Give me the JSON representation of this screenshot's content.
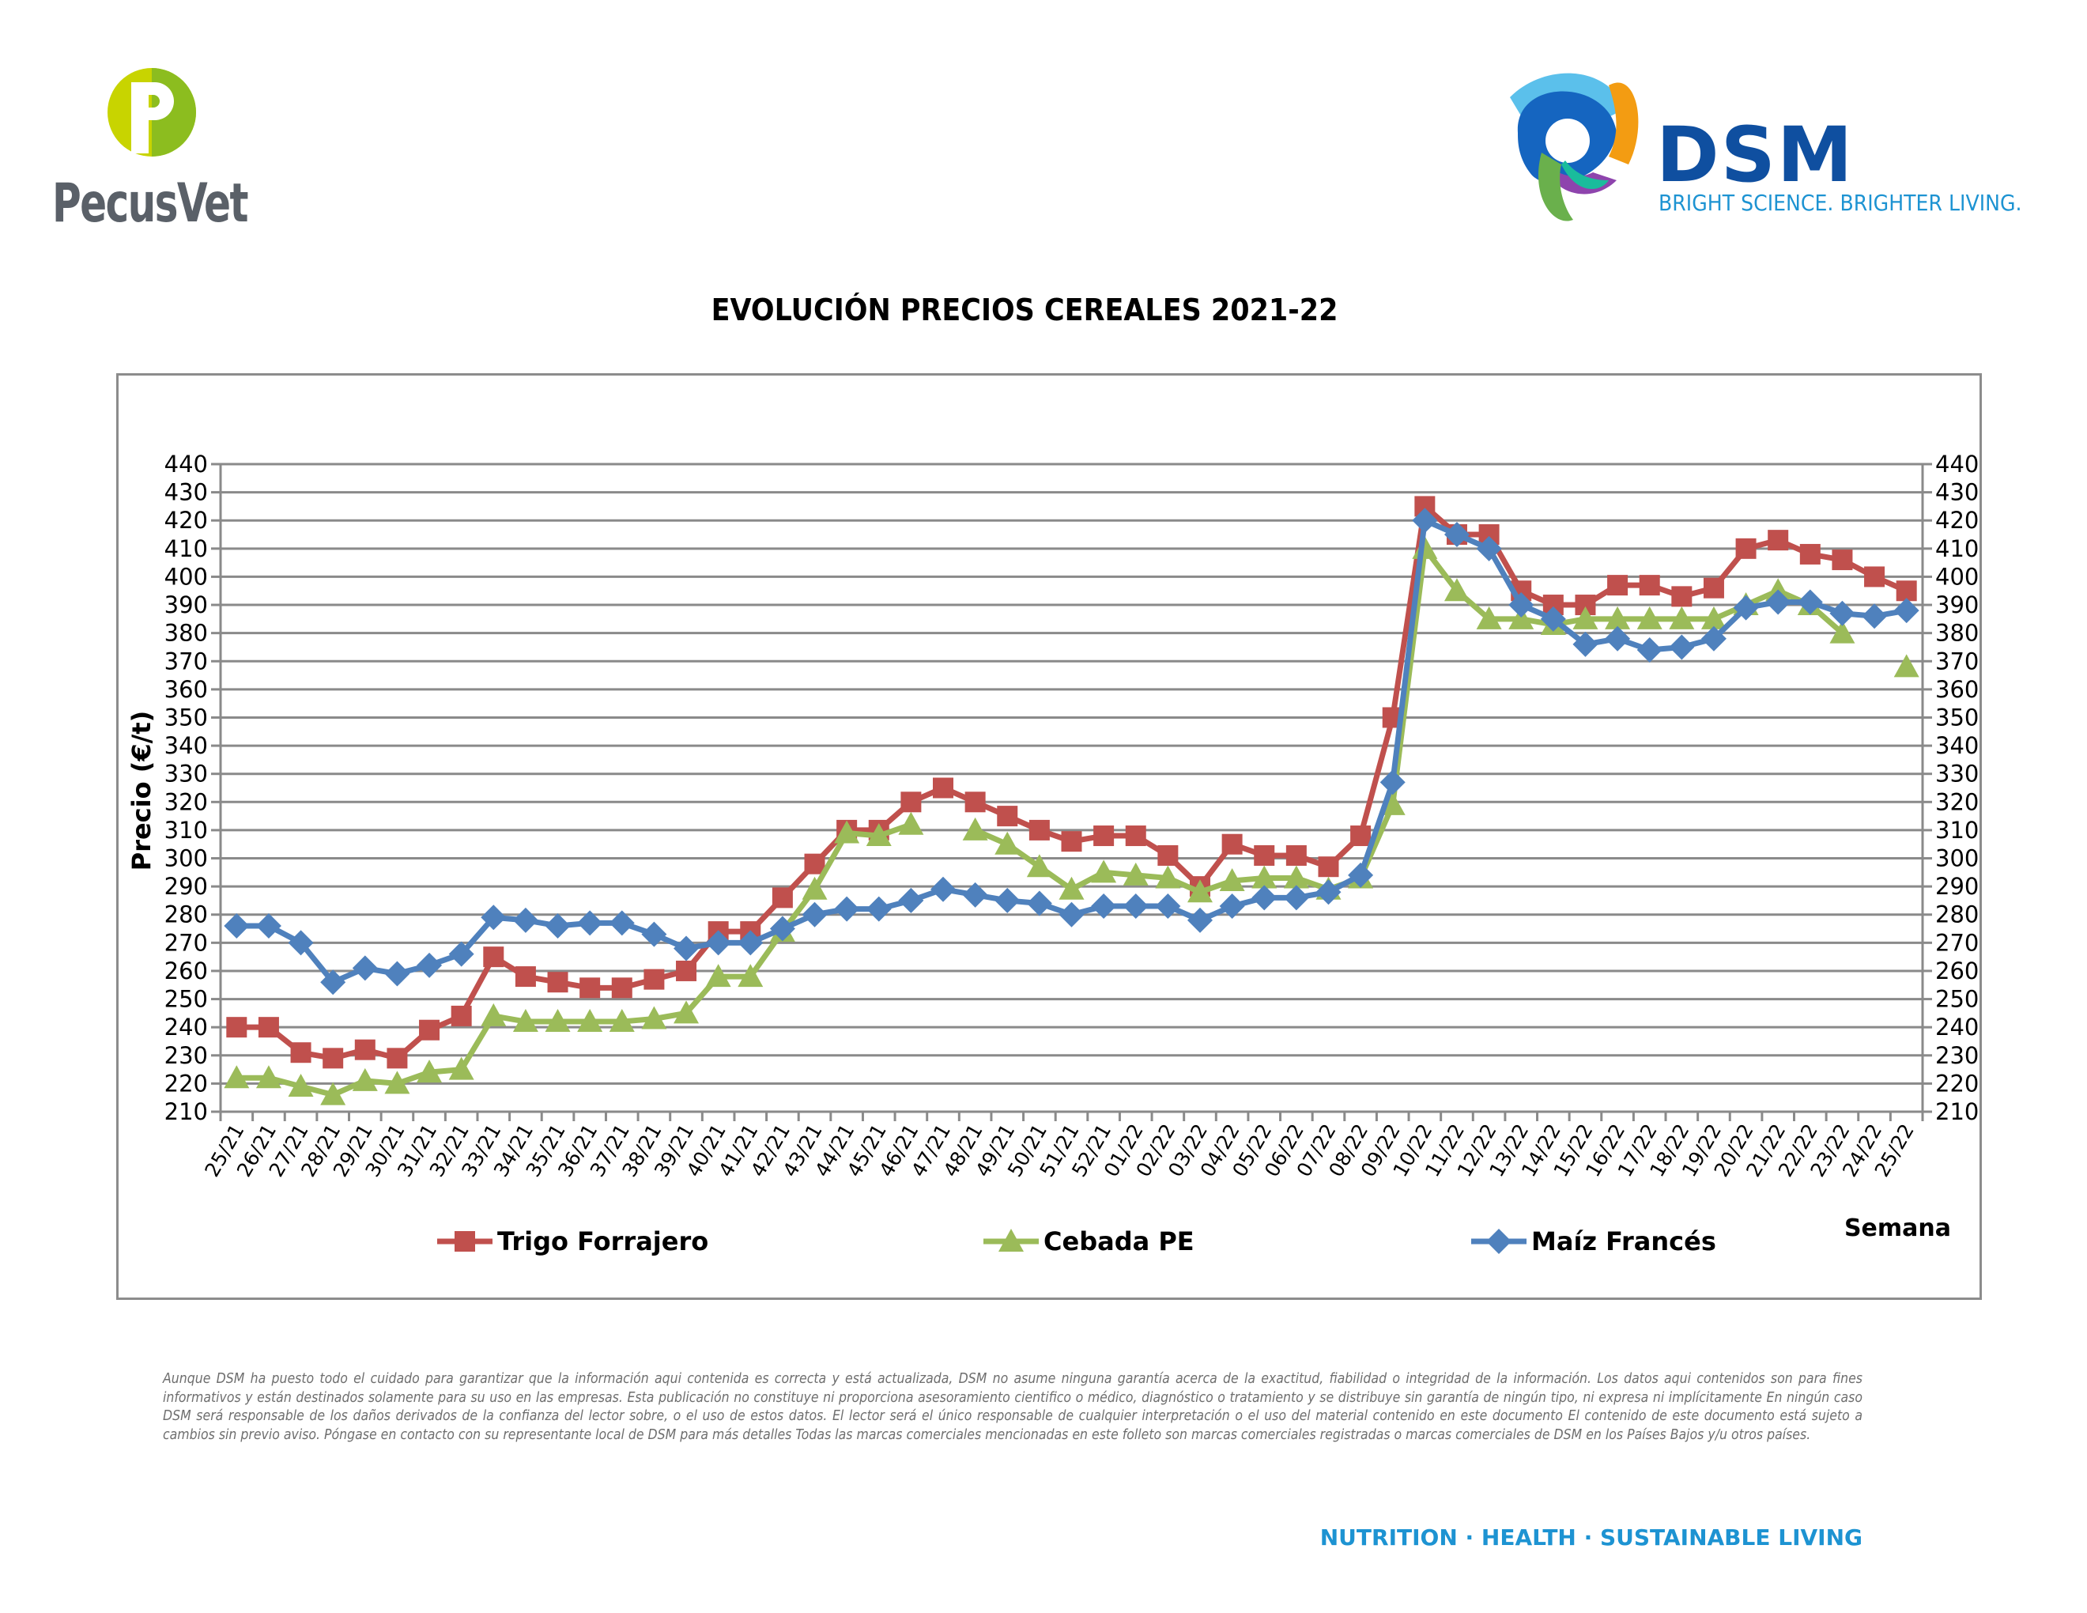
{
  "logos": {
    "left": {
      "text": "PecusVet",
      "colors": [
        "#c8d400",
        "#8cbd1f",
        "#5a6068"
      ]
    },
    "right": {
      "text": "DSM",
      "tagline": "BRIGHT SCIENCE. BRIGHTER LIVING.",
      "colors": [
        "#0f4fa0",
        "#1d93d2",
        "#f39c12",
        "#8e44ad",
        "#6ab04c"
      ]
    }
  },
  "chart_data": {
    "type": "line",
    "title": "EVOLUCIÓN PRECIOS CEREALES 2021-22",
    "xlabel": "Semana",
    "ylabel": "Precio (€/t)",
    "ylim": [
      210,
      440
    ],
    "yticks": [
      210,
      220,
      230,
      240,
      250,
      260,
      270,
      280,
      290,
      300,
      310,
      320,
      330,
      340,
      350,
      360,
      370,
      380,
      390,
      400,
      410,
      420,
      430,
      440
    ],
    "secondary_y_axis": true,
    "grid": true,
    "legend_position": "bottom",
    "categories": [
      "25/21",
      "26/21",
      "27/21",
      "28/21",
      "29/21",
      "30/21",
      "31/21",
      "32/21",
      "33/21",
      "34/21",
      "35/21",
      "36/21",
      "37/21",
      "38/21",
      "39/21",
      "40/21",
      "41/21",
      "42/21",
      "43/21",
      "44/21",
      "45/21",
      "46/21",
      "47/21",
      "48/21",
      "49/21",
      "50/21",
      "51/21",
      "52/21",
      "01/22",
      "02/22",
      "03/22",
      "04/22",
      "05/22",
      "06/22",
      "07/22",
      "08/22",
      "09/22",
      "10/22",
      "11/22",
      "12/22",
      "13/22",
      "14/22",
      "15/22",
      "16/22",
      "17/22",
      "18/22",
      "19/22",
      "20/22",
      "21/22",
      "22/22",
      "23/22",
      "24/22",
      "25/22"
    ],
    "series": [
      {
        "name": "Trigo Forrajero",
        "color": "#c0504d",
        "marker": "square",
        "values": [
          240,
          240,
          231,
          229,
          232,
          229,
          239,
          244,
          265,
          258,
          256,
          254,
          254,
          257,
          260,
          274,
          274,
          286,
          298,
          310,
          310,
          320,
          325,
          320,
          315,
          310,
          306,
          308,
          308,
          301,
          290,
          305,
          301,
          301,
          297,
          308,
          350,
          425,
          415,
          415,
          395,
          390,
          390,
          397,
          397,
          393,
          396,
          410,
          413,
          408,
          406,
          400,
          395
        ]
      },
      {
        "name": "Cebada PE",
        "color": "#9bbb59",
        "marker": "triangle",
        "values": [
          222,
          222,
          219,
          216,
          221,
          220,
          224,
          225,
          244,
          242,
          242,
          242,
          242,
          243,
          245,
          258,
          258,
          274,
          289,
          309,
          308,
          312,
          null,
          310,
          305,
          297,
          289,
          295,
          294,
          293,
          288,
          292,
          293,
          293,
          289,
          293,
          319,
          410,
          395,
          385,
          385,
          383,
          385,
          385,
          385,
          385,
          385,
          390,
          395,
          390,
          380,
          null,
          368
        ]
      },
      {
        "name": "Maíz Francés",
        "color": "#4f81bd",
        "marker": "diamond",
        "values": [
          276,
          276,
          270,
          256,
          261,
          259,
          262,
          266,
          279,
          278,
          276,
          277,
          277,
          273,
          268,
          270,
          270,
          275,
          280,
          282,
          282,
          285,
          289,
          287,
          285,
          284,
          280,
          283,
          283,
          283,
          278,
          283,
          286,
          286,
          288,
          294,
          327,
          420,
          415,
          410,
          390,
          385,
          376,
          378,
          374,
          375,
          378,
          389,
          391,
          391,
          387,
          386,
          388
        ]
      }
    ]
  },
  "disclaimer": "Aunque DSM ha puesto todo el cuidado para garantizar que la información aqui contenida es correcta y está actualizada, DSM no asume ninguna garantía acerca de la exactitud, fiabilidad o integridad de la información. Los datos aqui contenidos son para fines informativos y están destinados solamente para su uso en las empresas. Esta publicación no constituye ni proporciona asesoramiento cientifico o médico, diagnóstico o tratamiento y se distribuye sin garantía de ningún tipo, ni expresa ni implícitamente En ningún caso DSM será responsable de los daños derivados de la confianza del lector sobre, o el uso de estos datos. El lector será el único responsable de cualquier interpretación o el uso del material contenido en este documento El contenido de este documento está sujeto a cambios sin previo aviso. Póngase en contacto con su representante local de DSM para más detalles Todas las marcas comerciales mencionadas en este folleto son marcas comerciales registradas o marcas comerciales de DSM en los Países Bajos y/u otros países.",
  "footer": "NUTRITION · HEALTH · SUSTAINABLE LIVING"
}
